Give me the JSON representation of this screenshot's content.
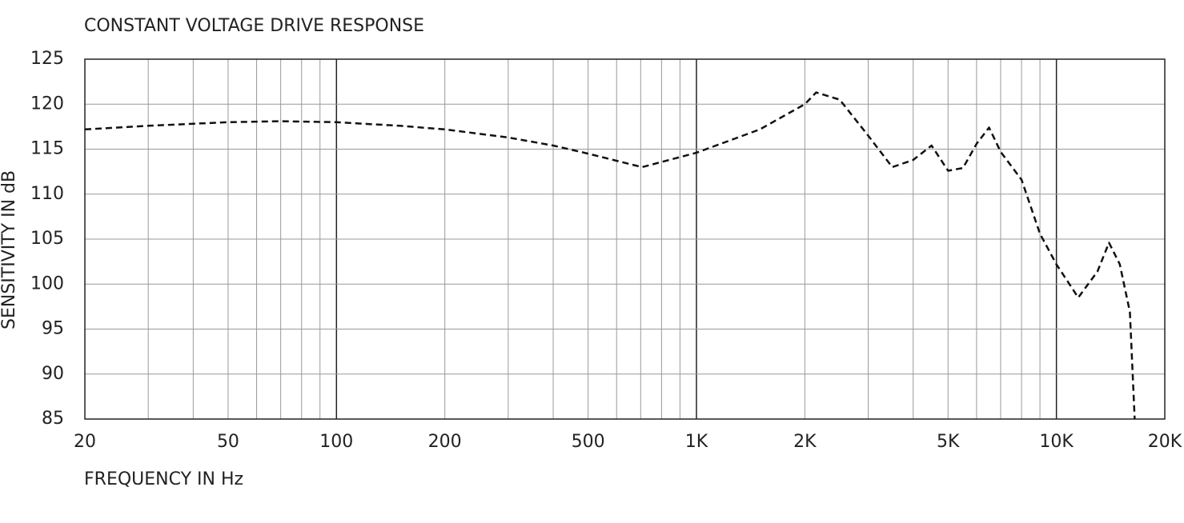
{
  "chart_data": {
    "type": "line",
    "title": "CONSTANT VOLTAGE DRIVE RESPONSE",
    "x_label": "FREQUENCY IN Hz",
    "y_label": "SENSITIVITY IN dB",
    "x_scale": "log",
    "grid": true,
    "xlim": [
      20,
      20000
    ],
    "ylim": [
      85,
      125
    ],
    "xticks": [
      20,
      50,
      100,
      200,
      500,
      {
        "value": 1000,
        "label": "1K"
      },
      {
        "value": 2000,
        "label": "2K"
      },
      {
        "value": 5000,
        "label": "5K"
      },
      {
        "value": 10000,
        "label": "10K"
      },
      {
        "value": 20000,
        "label": "20K"
      }
    ],
    "xgrid": [
      30,
      40,
      50,
      60,
      70,
      80,
      90,
      100,
      200,
      300,
      400,
      500,
      600,
      700,
      800,
      900,
      1000,
      2000,
      3000,
      4000,
      5000,
      6000,
      7000,
      8000,
      9000,
      10000
    ],
    "yticks": [
      85,
      90,
      95,
      100,
      105,
      110,
      115,
      120,
      125
    ],
    "series": [
      {
        "color": "#111111",
        "dash": true,
        "x": [
          20,
          30,
          50,
          70,
          100,
          150,
          200,
          300,
          400,
          500,
          706,
          1000,
          1500,
          2000,
          2150,
          2500,
          3000,
          3500,
          4000,
          4500,
          5000,
          5500,
          6000,
          6500,
          7000,
          8000,
          9000,
          10000,
          11500,
          13000,
          14000,
          15000,
          16000,
          16500
        ],
        "values": [
          117.2,
          117.6,
          118.0,
          118.1,
          118.0,
          117.6,
          117.2,
          116.3,
          115.4,
          114.5,
          113.0,
          114.6,
          117.2,
          120.0,
          121.3,
          120.5,
          116.5,
          113.0,
          113.8,
          115.4,
          112.6,
          112.9,
          115.6,
          117.4,
          114.7,
          111.6,
          105.6,
          102.2,
          98.5,
          101.4,
          104.6,
          102.2,
          96.9,
          85
        ]
      }
    ]
  }
}
